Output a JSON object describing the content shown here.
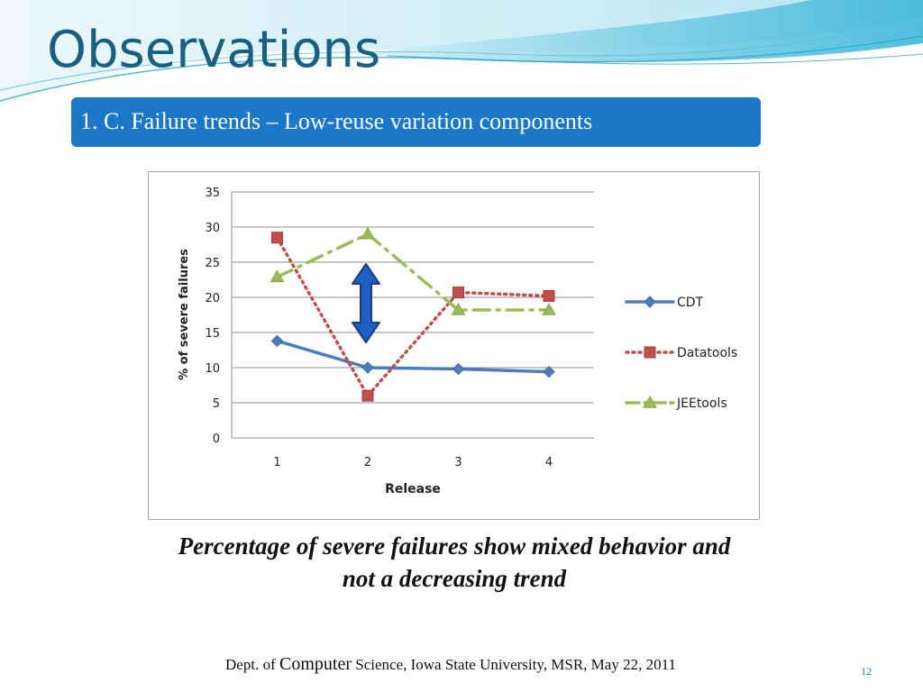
{
  "slide": {
    "title": "Observations",
    "subtitle": "1. C. Failure trends – Low-reuse variation components",
    "caption_line1": "Percentage of severe failures show mixed behavior and",
    "caption_line2": "not a decreasing trend",
    "footer_pre": "Dept. of ",
    "footer_big": "Computer",
    "footer_post": " Science,  Iowa State University,  MSR, May 22, 2011",
    "page_number": "12"
  },
  "colors": {
    "title": "#17607f",
    "subtitle_bg": "#1b78c8",
    "arrow": "#1f5fbf"
  },
  "chart_data": {
    "type": "line",
    "categories": [
      "1",
      "2",
      "3",
      "4"
    ],
    "xlabel": "Release",
    "ylabel": "% of severe failures",
    "ylim": [
      0,
      35
    ],
    "yticks": [
      0,
      5,
      10,
      15,
      20,
      25,
      30,
      35
    ],
    "grid": true,
    "legend_position": "right",
    "annotation": "double-headed arrow between release 2 values",
    "series": [
      {
        "name": "CDT",
        "values": [
          13.8,
          10.0,
          9.8,
          9.4
        ],
        "color": "#4a7ebb",
        "marker": "diamond",
        "line": "solid"
      },
      {
        "name": "Datatools",
        "values": [
          28.5,
          6.0,
          20.7,
          20.2
        ],
        "color": "#c0504d",
        "marker": "square",
        "line": "dotted"
      },
      {
        "name": "JEEtools",
        "values": [
          22.9,
          29.0,
          18.2,
          18.2
        ],
        "color": "#9bbb59",
        "marker": "triangle",
        "line": "dashdot"
      }
    ]
  }
}
